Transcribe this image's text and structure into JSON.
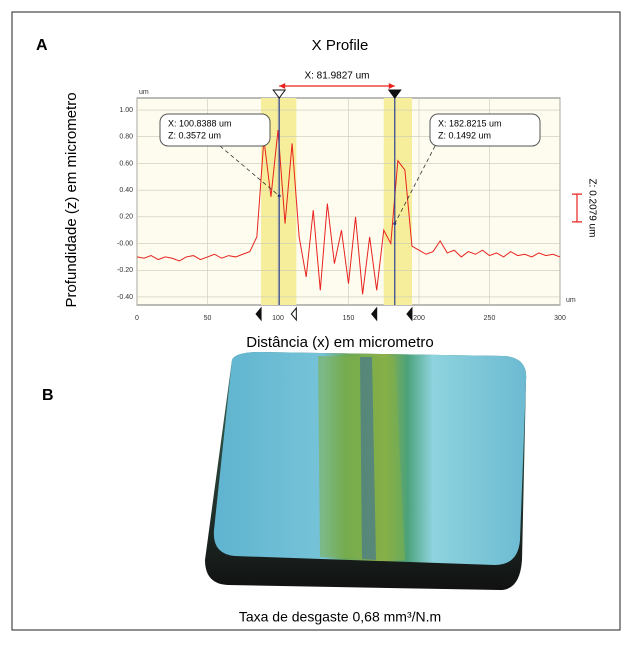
{
  "chart_data": {
    "type": "line",
    "panel_a_label": "A",
    "panel_b_label": "B",
    "title": "X Profile",
    "x_label": "Distância (x) em micrometro",
    "y_label": "Profundidade (z) em micrometro",
    "x_unit": "um",
    "y_unit": "um",
    "xlim": [
      0,
      300
    ],
    "xticks": [
      0,
      50,
      100,
      150,
      200,
      250,
      300
    ],
    "ylim": [
      -0.46,
      1.09
    ],
    "yticks": [
      {
        "value": 1.0,
        "label": "1.00"
      },
      {
        "value": 0.8,
        "label": "0.80"
      },
      {
        "value": 0.6,
        "label": "0.60"
      },
      {
        "value": 0.4,
        "label": "0.40"
      },
      {
        "value": 0.2,
        "label": "0.20"
      },
      {
        "value": 0,
        "label": "-0.00"
      },
      {
        "value": -0.2,
        "label": "-0.20"
      },
      {
        "value": -0.4,
        "label": "-0.40"
      }
    ],
    "grid": true,
    "highlight_color": "#f6ee9a",
    "highlight_ranges": [
      [
        88,
        113
      ],
      [
        175,
        195
      ]
    ],
    "x": [
      0,
      5,
      10,
      15,
      20,
      25,
      30,
      35,
      40,
      45,
      50,
      55,
      60,
      65,
      70,
      75,
      80,
      85,
      90,
      95,
      100,
      105,
      110,
      115,
      120,
      125,
      130,
      135,
      140,
      145,
      150,
      155,
      160,
      165,
      170,
      175,
      180,
      185,
      190,
      195,
      200,
      205,
      210,
      215,
      220,
      225,
      230,
      235,
      240,
      245,
      250,
      255,
      260,
      265,
      270,
      275,
      280,
      285,
      290,
      295,
      300
    ],
    "series": [
      {
        "color": "#e8231f",
        "values": [
          -0.1,
          -0.11,
          -0.09,
          -0.12,
          -0.1,
          -0.11,
          -0.13,
          -0.1,
          -0.09,
          -0.12,
          -0.1,
          -0.08,
          -0.11,
          -0.09,
          -0.1,
          -0.08,
          -0.06,
          0.05,
          0.78,
          0.35,
          0.85,
          0.15,
          0.75,
          0.05,
          -0.25,
          0.25,
          -0.35,
          0.3,
          -0.15,
          0.1,
          -0.3,
          0.2,
          -0.38,
          0.05,
          -0.35,
          0.1,
          0.0,
          0.62,
          0.55,
          -0.02,
          -0.05,
          -0.08,
          -0.06,
          0.02,
          -0.07,
          -0.05,
          -0.1,
          -0.06,
          -0.08,
          -0.05,
          -0.09,
          -0.07,
          -0.1,
          -0.06,
          -0.09,
          -0.08,
          -0.1,
          -0.07,
          -0.09,
          -0.08,
          -0.1
        ]
      }
    ],
    "cursors": [
      {
        "x": 100.8388,
        "x_label": "X: 100.8388 um",
        "z": 0.3572,
        "z_label": "Z: 0.3572 um"
      },
      {
        "x": 182.8215,
        "x_label": "X: 182.8215 um",
        "z": 0.1492,
        "z_label": "Z: 0.1492 um"
      }
    ],
    "x_distance": {
      "value": 81.9827,
      "label": "X: 81.9827 um"
    },
    "z_distance": {
      "value": 0.2079,
      "label": "Z: 0.2079 um"
    },
    "caption": "Taxa de desgaste 0,68 mm³/N.m"
  }
}
